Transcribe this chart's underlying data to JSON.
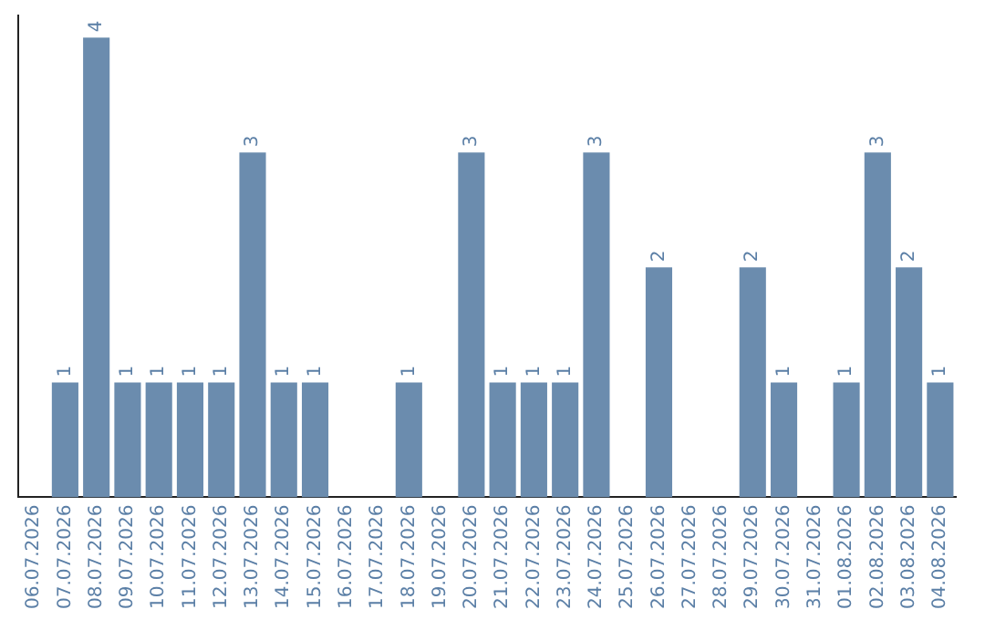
{
  "chart_data": {
    "type": "bar",
    "categories": [
      "06.07.2026",
      "07.07.2026",
      "08.07.2026",
      "09.07.2026",
      "10.07.2026",
      "11.07.2026",
      "12.07.2026",
      "13.07.2026",
      "14.07.2026",
      "15.07.2026",
      "16.07.2026",
      "17.07.2026",
      "18.07.2026",
      "19.07.2026",
      "20.07.2026",
      "21.07.2026",
      "22.07.2026",
      "23.07.2026",
      "24.07.2026",
      "25.07.2026",
      "26.07.2026",
      "27.07.2026",
      "28.07.2026",
      "29.07.2026",
      "30.07.2026",
      "31.07.2026",
      "01.08.2026",
      "02.08.2026",
      "03.08.2026",
      "04.08.2026"
    ],
    "values": [
      0,
      1,
      4,
      1,
      1,
      1,
      1,
      3,
      1,
      1,
      0,
      0,
      1,
      0,
      3,
      1,
      1,
      1,
      3,
      0,
      2,
      0,
      0,
      2,
      1,
      0,
      1,
      3,
      2,
      1
    ],
    "value_labels": [
      null,
      "1",
      "4",
      "1",
      "1",
      "1",
      "1",
      "3",
      "1",
      "1",
      null,
      null,
      "1",
      null,
      "3",
      "1",
      "1",
      "1",
      "3",
      null,
      "2",
      null,
      null,
      "2",
      "1",
      null,
      "1",
      "3",
      "2",
      "1"
    ],
    "color": "#6b8cae",
    "ylim": [
      0,
      4.2
    ],
    "tick_labels": "x",
    "grid": false,
    "legend": false
  }
}
